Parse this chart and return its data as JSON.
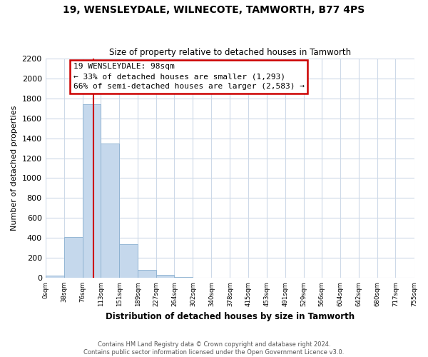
{
  "title": "19, WENSLEYDALE, WILNECOTE, TAMWORTH, B77 4PS",
  "subtitle": "Size of property relative to detached houses in Tamworth",
  "xlabel": "Distribution of detached houses by size in Tamworth",
  "ylabel": "Number of detached properties",
  "bar_color": "#c5d8ec",
  "bar_edge_color": "#8ab0d0",
  "background_color": "#ffffff",
  "grid_color": "#cdd9e8",
  "annotation_box_color": "#ffffff",
  "annotation_box_edge": "#cc0000",
  "annotation_line_color": "#cc0000",
  "footer_line1": "Contains HM Land Registry data © Crown copyright and database right 2024.",
  "footer_line2": "Contains public sector information licensed under the Open Government Licence v3.0.",
  "annotation_title": "19 WENSLEYDALE: 98sqm",
  "annotation_line2": "← 33% of detached houses are smaller (1,293)",
  "annotation_line3": "66% of semi-detached houses are larger (2,583) →",
  "property_sqm": 98,
  "bin_edges": [
    0,
    38,
    76,
    113,
    151,
    189,
    227,
    264,
    302,
    340,
    378,
    415,
    453,
    491,
    529,
    566,
    604,
    642,
    680,
    717,
    755
  ],
  "bin_counts": [
    20,
    410,
    1740,
    1350,
    340,
    75,
    25,
    5,
    0,
    0,
    0,
    0,
    0,
    0,
    0,
    0,
    0,
    0,
    0,
    0
  ],
  "ylim": [
    0,
    2200
  ],
  "yticks": [
    0,
    200,
    400,
    600,
    800,
    1000,
    1200,
    1400,
    1600,
    1800,
    2000,
    2200
  ],
  "xtick_labels": [
    "0sqm",
    "38sqm",
    "76sqm",
    "113sqm",
    "151sqm",
    "189sqm",
    "227sqm",
    "264sqm",
    "302sqm",
    "340sqm",
    "378sqm",
    "415sqm",
    "453sqm",
    "491sqm",
    "529sqm",
    "566sqm",
    "604sqm",
    "642sqm",
    "680sqm",
    "717sqm",
    "755sqm"
  ]
}
